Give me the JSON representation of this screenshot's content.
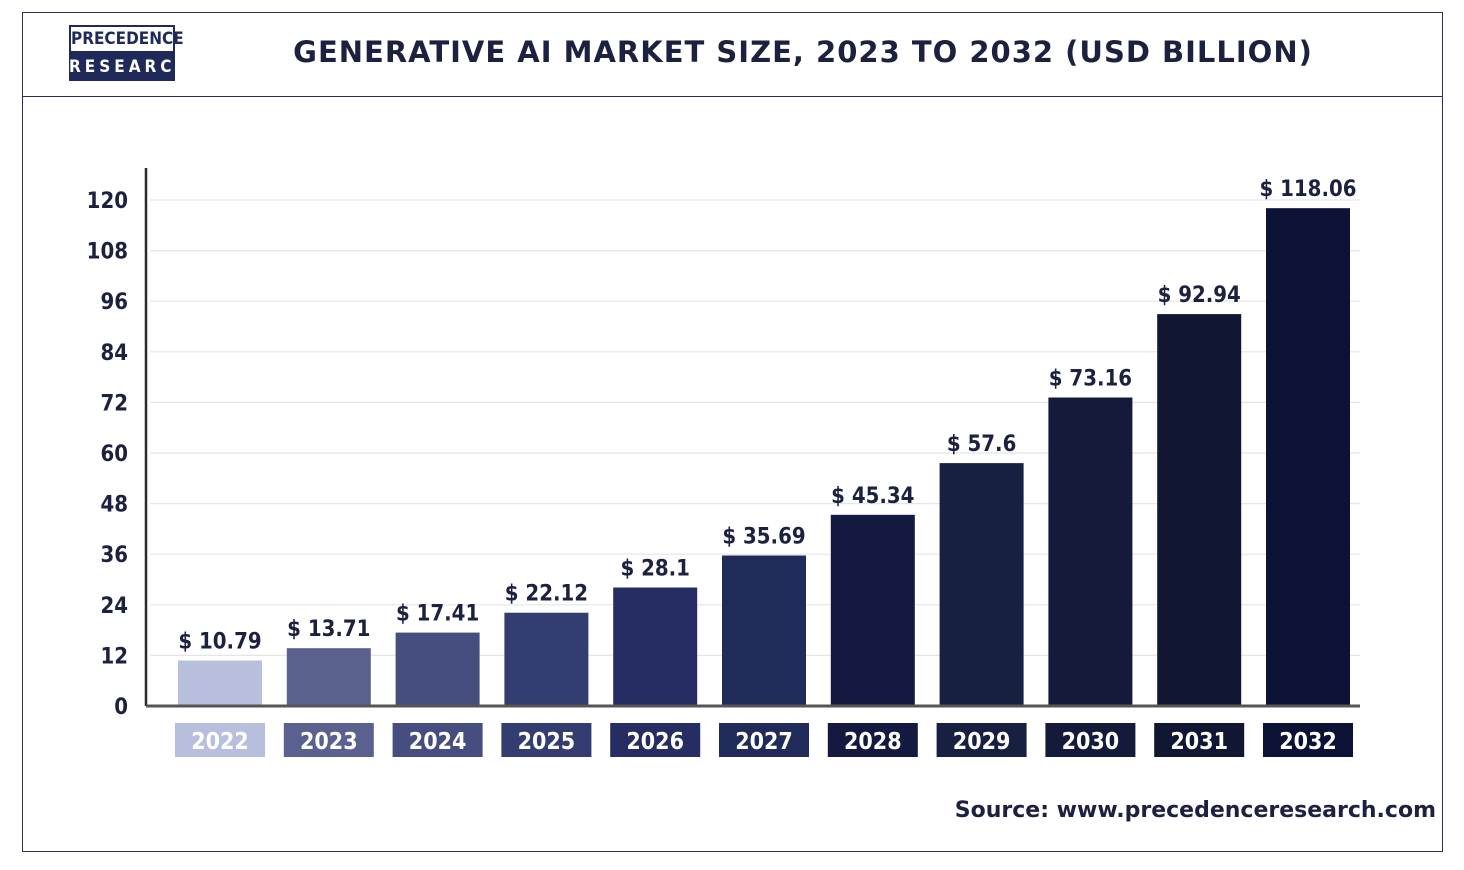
{
  "header": {
    "logo_line1": "PRECEDENCE",
    "logo_line2": "RESEARCH",
    "title": "GENERATIVE AI MARKET SIZE, 2023 TO 2032 (USD BILLION)"
  },
  "footer": {
    "source": "Source: www.precedenceresearch.com"
  },
  "colors": {
    "frame": "#2b2f52",
    "text": "#1d2140",
    "axis": "#2a2a2a",
    "grid": "#e4e4ea"
  },
  "chart_data": {
    "type": "bar",
    "title": "GENERATIVE AI MARKET SIZE, 2023 TO 2032 (USD BILLION)",
    "categories": [
      "2022",
      "2023",
      "2024",
      "2025",
      "2026",
      "2027",
      "2028",
      "2029",
      "2030",
      "2031",
      "2032"
    ],
    "values": [
      10.79,
      13.71,
      17.41,
      22.12,
      28.1,
      35.69,
      45.34,
      57.6,
      73.16,
      92.94,
      118.06
    ],
    "data_labels": [
      "$ 10.79",
      "$ 13.71",
      "$ 17.41",
      "$ 22.12",
      "$ 28.1",
      "$ 35.69",
      "$ 45.34",
      "$ 57.6",
      "$ 73.16",
      "$ 92.94",
      "$ 118.06"
    ],
    "bar_colors": [
      "#b7bfdc",
      "#5b618e",
      "#464e80",
      "#343d70",
      "#262d63",
      "#202b59",
      "#141a3f",
      "#182042",
      "#141b3a",
      "#111733",
      "#0c1235"
    ],
    "ylim": [
      0,
      120
    ],
    "yticks": [
      0,
      12,
      24,
      36,
      48,
      60,
      72,
      84,
      96,
      108,
      120
    ],
    "grid": true,
    "xlabel": "",
    "ylabel": ""
  }
}
